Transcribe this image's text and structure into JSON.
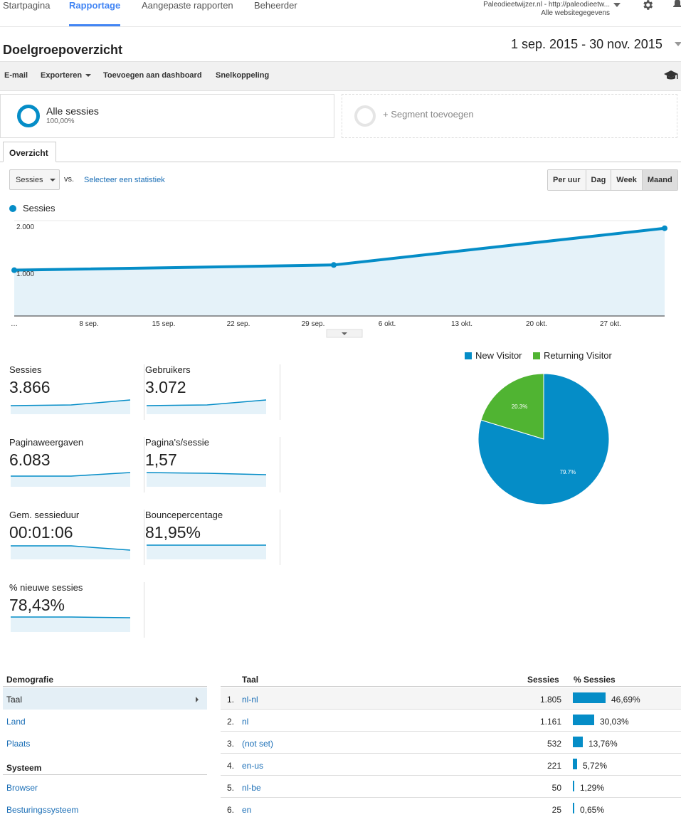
{
  "topnav": {
    "items": [
      "Startpagina",
      "Rapportage",
      "Aangepaste rapporten",
      "Beheerder"
    ],
    "active": "Rapportage",
    "account_line1": "Paleodieetwijzer.nl - http://paleodieetw...",
    "account_line2": "Alle websitegegevens"
  },
  "page": {
    "title": "Doelgroepoverzicht",
    "daterange": "1 sep. 2015 - 30 nov. 2015"
  },
  "toolbar": {
    "email": "E-mail",
    "export": "Exporteren",
    "add_dashboard": "Toevoegen aan dashboard",
    "shortcut": "Snelkoppeling"
  },
  "segments": {
    "all_name": "Alle sessies",
    "all_pct": "100,00%",
    "add_label": "+ Segment toevoegen"
  },
  "tab": {
    "overview": "Overzicht"
  },
  "controls": {
    "metric": "Sessies",
    "vs": "vs.",
    "select_stat": "Selecteer een statistiek",
    "granularity": [
      "Per uur",
      "Dag",
      "Week",
      "Maand"
    ],
    "granularity_active": "Maand"
  },
  "chart_data": {
    "type": "line",
    "series": [
      {
        "name": "Sessies",
        "values": [
          960,
          1070,
          1840
        ]
      }
    ],
    "x": [
      "1 sep.",
      "1 okt.",
      "1 nov."
    ],
    "tick_labels": [
      "…",
      "8 sep.",
      "15 sep.",
      "22 sep.",
      "29 sep.",
      "6 okt.",
      "13 okt.",
      "20 okt.",
      "27 okt."
    ],
    "y_ticks": [
      "2.000",
      "1.000"
    ],
    "ylim": [
      0,
      2000
    ],
    "color": "#058dc7"
  },
  "stats": [
    {
      "label": "Sessies",
      "value": "3.866"
    },
    {
      "label": "Gebruikers",
      "value": "3.072"
    },
    {
      "label": "Paginaweergaven",
      "value": "6.083"
    },
    {
      "label": "Pagina's/sessie",
      "value": "1,57"
    },
    {
      "label": "Gem. sessieduur",
      "value": "00:01:06"
    },
    {
      "label": "Bouncepercentage",
      "value": "81,95%"
    },
    {
      "label": "% nieuwe sessies",
      "value": "78,43%"
    }
  ],
  "pie": {
    "legend": [
      {
        "name": "New Visitor",
        "color": "#058dc7"
      },
      {
        "name": "Returning Visitor",
        "color": "#50b432"
      }
    ],
    "labels": [
      "79.7%",
      "20.3%"
    ],
    "values": [
      79.7,
      20.3
    ]
  },
  "demografie": {
    "heading": "Demografie",
    "items": [
      "Taal",
      "Land",
      "Plaats"
    ],
    "system_heading": "Systeem",
    "system_items": [
      "Browser",
      "Besturingssysteem"
    ]
  },
  "table": {
    "headers": {
      "name": "Taal",
      "sessions": "Sessies",
      "pct": "% Sessies"
    },
    "rows": [
      {
        "num": "1.",
        "name": "nl-nl",
        "value": "1.805",
        "pct": "46,69%",
        "share": 46.69
      },
      {
        "num": "2.",
        "name": "nl",
        "value": "1.161",
        "pct": "30,03%",
        "share": 30.03
      },
      {
        "num": "3.",
        "name": "(not set)",
        "value": "532",
        "pct": "13,76%",
        "share": 13.76
      },
      {
        "num": "4.",
        "name": "en-us",
        "value": "221",
        "pct": "5,72%",
        "share": 5.72
      },
      {
        "num": "5.",
        "name": "nl-be",
        "value": "50",
        "pct": "1,29%",
        "share": 1.29
      },
      {
        "num": "6.",
        "name": "en",
        "value": "25",
        "pct": "0,65%",
        "share": 0.65
      }
    ]
  }
}
